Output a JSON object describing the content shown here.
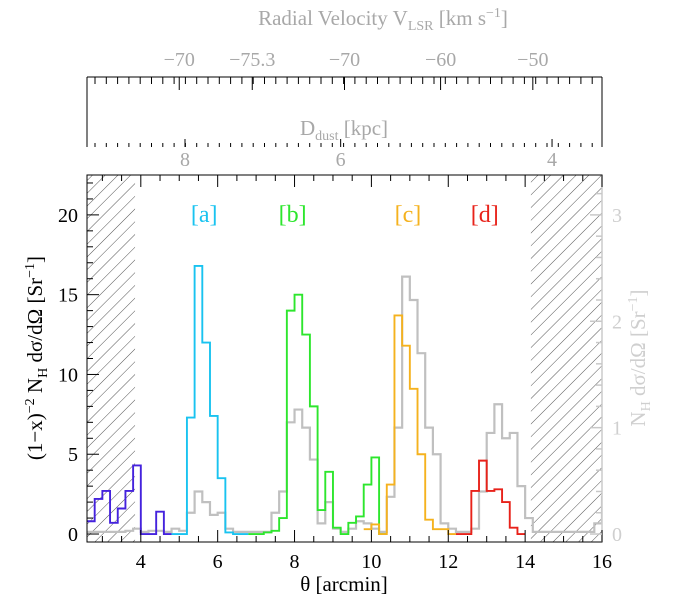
{
  "colors": {
    "axis": "#000000",
    "gray_axis": "#a8a8a8",
    "gray_series": "#c0c0c0",
    "hatch": "#555555",
    "label_a": "#19c3f0",
    "label_b": "#2de62d",
    "label_c": "#f5b21e",
    "label_d": "#e8221a",
    "series_purple": "#4422dd"
  },
  "chart_data": {
    "type": "histogram",
    "xlim": [
      2.6,
      16.0
    ],
    "ylim": [
      -0.5,
      22.5
    ],
    "y2lim": [
      -0.075,
      3.375
    ],
    "xlabel": "θ [arcmin]",
    "ylabel": "(1−x)⁻² N_H dσ/dΩ [Sr⁻¹]",
    "y2label": "N_H dσ/dΩ [Sr⁻¹]",
    "top_axis_1_label": "D_dust [kpc]",
    "top_axis_2_label": "Radial Velocity V_LSR [km s⁻¹]",
    "x_ticks": [
      {
        "value": 4,
        "label": "4"
      },
      {
        "value": 6,
        "label": "6"
      },
      {
        "value": 8,
        "label": "8"
      },
      {
        "value": 10,
        "label": "10"
      },
      {
        "value": 12,
        "label": "12"
      },
      {
        "value": 14,
        "label": "14"
      },
      {
        "value": 16,
        "label": "16"
      }
    ],
    "y_ticks": [
      {
        "value": 0,
        "label": "0"
      },
      {
        "value": 5,
        "label": "5"
      },
      {
        "value": 10,
        "label": "10"
      },
      {
        "value": 15,
        "label": "15"
      },
      {
        "value": 20,
        "label": "20"
      }
    ],
    "y2_ticks": [
      {
        "value": 0,
        "label": "0"
      },
      {
        "value": 1,
        "label": "1"
      },
      {
        "value": 2,
        "label": "2"
      },
      {
        "value": 3,
        "label": "3"
      }
    ],
    "dist_ticks": [
      {
        "theta": 5.15,
        "label": "8"
      },
      {
        "theta": 9.2,
        "label": "6"
      },
      {
        "theta": 14.7,
        "label": "4"
      }
    ],
    "vel_ticks": [
      {
        "theta": 5.0,
        "label": "−70"
      },
      {
        "theta": 6.9,
        "label": "−75.3"
      },
      {
        "theta": 9.3,
        "label": "−70"
      },
      {
        "theta": 11.8,
        "label": "−60"
      },
      {
        "theta": 14.2,
        "label": "−50"
      }
    ],
    "hatched_regions": [
      [
        2.6,
        3.85
      ],
      [
        14.15,
        16.0
      ]
    ],
    "cloud_labels": [
      {
        "theta": 5.65,
        "text": "[a]",
        "color": "#19c3f0"
      },
      {
        "theta": 7.95,
        "text": "[b]",
        "color": "#2de62d"
      },
      {
        "theta": 10.95,
        "text": "[c]",
        "color": "#f5b21e"
      },
      {
        "theta": 12.95,
        "text": "[d]",
        "color": "#e8221a"
      }
    ],
    "bin_width": 0.2,
    "x_start": 2.6,
    "series": [
      {
        "kind": "colored",
        "color": "#4422dd",
        "bins": [
          {
            "x0": 2.6,
            "values": [
              0.8,
              2.2,
              2.7,
              0.7,
              1.6,
              2.7,
              4.3,
              0,
              0,
              1.4,
              0
            ]
          }
        ]
      },
      {
        "kind": "colored",
        "color": "#19c3f0",
        "bins": [
          {
            "x0": 4.8,
            "values": [
              0,
              0,
              7.3,
              16.8,
              12.0,
              7.4,
              3.5,
              0.1,
              0,
              0
            ]
          }
        ]
      },
      {
        "kind": "colored",
        "color": "#2de62d",
        "bins": [
          {
            "x0": 6.8,
            "values": [
              0,
              0,
              0.1,
              0.2,
              1.0,
              14.0,
              15.0,
              12.5,
              8.0,
              1.5,
              3.9,
              0.4,
              0,
              0.7,
              1.1,
              3.1,
              4.8,
              0
            ]
          }
        ]
      },
      {
        "kind": "colored",
        "color": "#f5b21e",
        "bins": [
          {
            "x0": 9.8,
            "values": [
              0.3,
              0.6,
              0,
              3.1,
              13.7,
              11.8,
              9.1,
              5.0,
              0.9,
              0.3,
              0.3,
              0
            ]
          }
        ]
      },
      {
        "kind": "colored",
        "color": "#e8221a",
        "bins": [
          {
            "x0": 12.2,
            "values": [
              0,
              0,
              2.7,
              4.6,
              2.7,
              2.8,
              2.0,
              0.4,
              0
            ]
          }
        ]
      },
      {
        "kind": "gray",
        "color": "#c0c0c0",
        "bins": [
          {
            "x0": 2.6,
            "values": [
              0.02,
              0.02,
              0.02,
              0.02,
              0.02,
              0.03,
              0.05,
              0.02,
              0.03,
              0.03,
              0.02,
              0.05,
              0.03,
              0.2,
              0.4,
              0.3,
              0.18,
              0.2,
              0.05,
              0.02,
              0.02,
              0.02,
              0.02,
              0.02,
              0.2,
              0.4,
              1.05,
              1.17,
              1.0,
              0.7,
              0.1,
              0.3,
              0.05,
              0.02,
              0.05,
              0.12,
              0.1,
              0.05,
              0.02,
              0.35,
              1.0,
              2.42,
              2.2,
              1.7,
              1.0,
              0.75,
              0.1,
              0.05,
              0.02,
              0.02,
              0.05,
              0.4,
              0.95,
              1.22,
              0.9,
              0.95,
              0.45,
              0.15,
              0.02,
              0.02,
              0.02,
              0.02,
              0.02,
              0.02,
              0.02,
              0.02,
              0.1,
              0.35,
              0.88
            ]
          }
        ]
      }
    ]
  }
}
